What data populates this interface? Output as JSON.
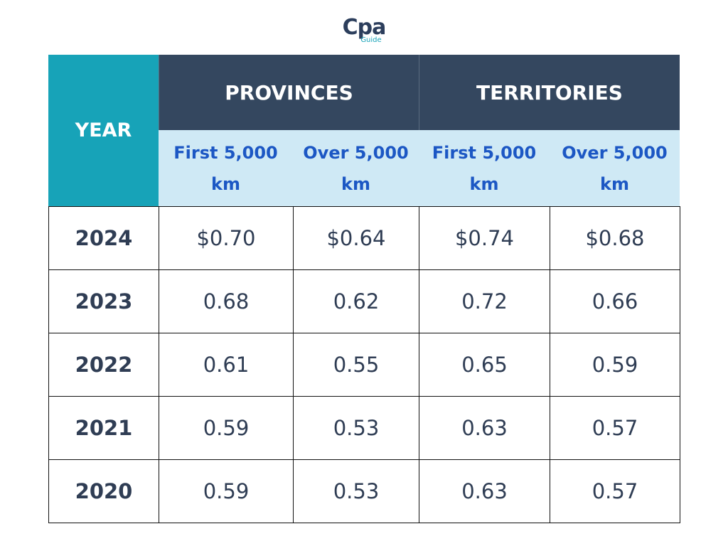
{
  "logo": {
    "name": "Cpa",
    "tagline": "Guide"
  },
  "table": {
    "year_header": "YEAR",
    "groups": [
      "PROVINCES",
      "TERRITORIES"
    ],
    "subheaders": [
      "First 5,000 km",
      "Over 5,000 km",
      "First 5,000 km",
      "Over 5,000 km"
    ],
    "rows": [
      [
        "2024",
        "$0.70",
        "$0.64",
        "$0.74",
        "$0.68"
      ],
      [
        "2023",
        "0.68",
        "0.62",
        "0.72",
        "0.66"
      ],
      [
        "2022",
        "0.61",
        "0.55",
        "0.65",
        "0.59"
      ],
      [
        "2021",
        "0.59",
        "0.53",
        "0.63",
        "0.57"
      ],
      [
        "2020",
        "0.59",
        "0.53",
        "0.63",
        "0.57"
      ]
    ]
  }
}
